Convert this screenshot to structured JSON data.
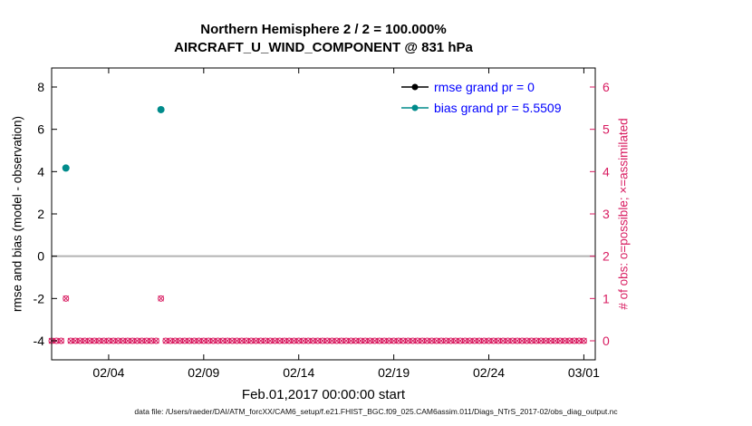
{
  "chart_data": {
    "type": "scatter",
    "title_line1": "Northern Hemisphere 2 / 2 = 100.000%",
    "title_line2": "AIRCRAFT_U_WIND_COMPONENT @ 831 hPa",
    "xlabel": "Feb.01,2017 00:00:00 start",
    "x_axis": {
      "unit": "days since 2017-02-01 00:00",
      "lim": [
        0,
        28.6
      ],
      "ticks": [
        3,
        8,
        13,
        18,
        23,
        28
      ],
      "tick_labels": [
        "02/04",
        "02/09",
        "02/14",
        "02/19",
        "02/24",
        "03/01"
      ]
    },
    "left_axis": {
      "label": "rmse and bias (model - observation)",
      "lim": [
        -4.9,
        8.9
      ],
      "ticks": [
        -4,
        -2,
        0,
        2,
        4,
        6,
        8
      ],
      "color": "#000000"
    },
    "right_axis": {
      "label": "# of obs: o=possible; ×=assimilated",
      "lim": [
        -0.45,
        6.45
      ],
      "ticks": [
        0,
        1,
        2,
        3,
        4,
        5,
        6
      ],
      "color": "#d81b60"
    },
    "zero_line": {
      "value": 0,
      "color": "#b3b3b3"
    },
    "legend": {
      "position": "upper-right-inside",
      "entries": [
        {
          "label": "rmse grand pr = 0",
          "color": "#000000",
          "text_color": "#0000ff"
        },
        {
          "label": "bias grand pr = 5.5509",
          "color": "#008b8b",
          "text_color": "#0000ff"
        }
      ]
    },
    "series": [
      {
        "name": "rmse",
        "marker": "dot",
        "color": "#000000",
        "points": []
      },
      {
        "name": "bias",
        "marker": "dot",
        "color": "#008b8b",
        "points": [
          {
            "t": 0.75,
            "value": 4.17
          },
          {
            "t": 5.75,
            "value": 6.93
          }
        ]
      }
    ],
    "obs_counts": {
      "color": "#d81b60",
      "marker_possible": "o",
      "marker_assimilated": "x",
      "t_start": 0,
      "t_end": 28,
      "t_step": 0.25,
      "default_count": 0,
      "exceptions": [
        {
          "t": 0.75,
          "count": 1
        },
        {
          "t": 5.75,
          "count": 1
        }
      ]
    }
  },
  "footer": {
    "datafile": "data file: /Users/raeder/DAI/ATM_forcXX/CAM6_setup/f.e21.FHIST_BGC.f09_025.CAM6assim.011/Diags_NTrS_2017-02/obs_diag_output.nc"
  }
}
